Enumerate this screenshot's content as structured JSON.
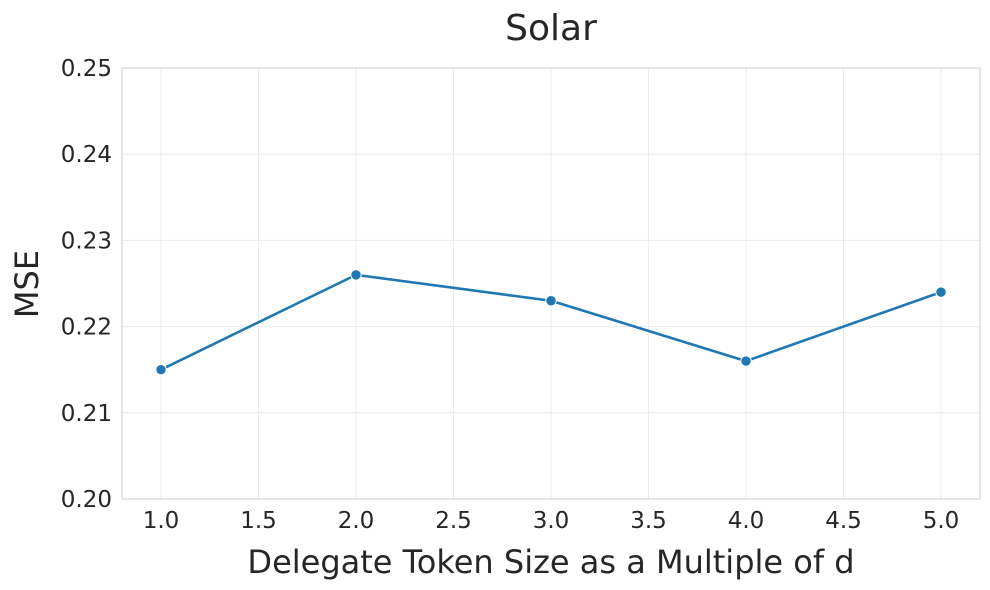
{
  "chart_data": {
    "type": "line",
    "title": "Solar",
    "xlabel": "Delegate Token Size as a Multiple of d",
    "ylabel": "MSE",
    "x": [
      1.0,
      2.0,
      3.0,
      4.0,
      5.0
    ],
    "series": [
      {
        "values": [
          0.215,
          0.226,
          0.223,
          0.216,
          0.224
        ],
        "color": "#1f77b4",
        "marker": "circle"
      }
    ],
    "xlim": [
      0.8,
      5.2
    ],
    "ylim": [
      0.2,
      0.25
    ],
    "xticks": [
      "1.0",
      "1.5",
      "2.0",
      "2.5",
      "3.0",
      "3.5",
      "4.0",
      "4.5",
      "5.0"
    ],
    "xtick_values": [
      1.0,
      1.5,
      2.0,
      2.5,
      3.0,
      3.5,
      4.0,
      4.5,
      5.0
    ],
    "yticks": [
      "0.20",
      "0.21",
      "0.22",
      "0.23",
      "0.24",
      "0.25"
    ],
    "ytick_values": [
      0.2,
      0.21,
      0.22,
      0.23,
      0.24,
      0.25
    ],
    "grid": true,
    "legend": "none"
  }
}
